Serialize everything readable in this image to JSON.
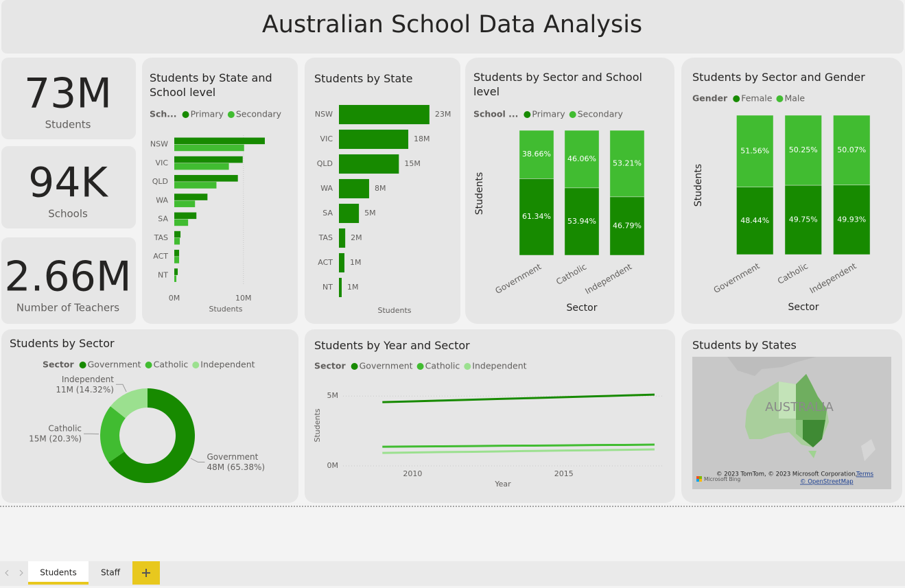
{
  "header": {
    "title": "Australian School Data Analysis"
  },
  "cards": [
    {
      "value": "73M",
      "label": "Students"
    },
    {
      "value": "94K",
      "label": "Schools"
    },
    {
      "value": "2.66M",
      "label": "Number of Teachers"
    }
  ],
  "chart_data": [
    {
      "type": "hbar",
      "title": "Students by State and School level",
      "legend_title": "Sch...",
      "categories": [
        "NSW",
        "VIC",
        "QLD",
        "WA",
        "SA",
        "TAS",
        "ACT",
        "NT"
      ],
      "series": [
        {
          "name": "Primary",
          "color": "#178a00",
          "values": [
            13.1,
            9.9,
            9.2,
            4.8,
            3.2,
            0.9,
            0.7,
            0.5
          ]
        },
        {
          "name": "Secondary",
          "color": "#41bc31",
          "values": [
            10.1,
            7.9,
            6.1,
            3.0,
            2.0,
            0.8,
            0.7,
            0.3
          ]
        }
      ],
      "xlim": [
        0,
        13.5
      ],
      "xticks": [
        {
          "value": 0,
          "label": "0M"
        },
        {
          "value": 10,
          "label": "10M"
        }
      ],
      "xlabel": "Students",
      "grid": true
    },
    {
      "type": "hbar",
      "title": "Students by State",
      "categories": [
        "NSW",
        "VIC",
        "QLD",
        "WA",
        "SA",
        "TAS",
        "ACT",
        "NT"
      ],
      "values": [
        23.1,
        17.7,
        15.3,
        7.7,
        5.1,
        1.6,
        1.4,
        0.7
      ],
      "value_labels": [
        "23M",
        "18M",
        "15M",
        "8M",
        "5M",
        "2M",
        "1M",
        "1M"
      ],
      "color": "#178a00",
      "xlim": [
        0,
        24
      ],
      "xlabel": "Students"
    },
    {
      "type": "stacked_column",
      "title": "Students by Sector and School level",
      "legend_title": "School ...",
      "categories": [
        "Government",
        "Catholic",
        "Independent"
      ],
      "series": [
        {
          "name": "Primary",
          "color": "#178a00",
          "values": [
            61.34,
            53.94,
            46.79
          ],
          "value_labels": [
            "61.34%",
            "53.94%",
            "46.79%"
          ]
        },
        {
          "name": "Secondary",
          "color": "#41bc31",
          "values": [
            38.66,
            46.06,
            53.21
          ],
          "value_labels": [
            "38.66%",
            "46.06%",
            "53.21%"
          ]
        }
      ],
      "ylim": [
        0,
        100
      ],
      "xlabel": "Sector",
      "ylabel": "Students"
    },
    {
      "type": "stacked_column",
      "title": "Students by Sector and Gender",
      "legend_title": "Gender",
      "categories": [
        "Government",
        "Catholic",
        "Independent"
      ],
      "series": [
        {
          "name": "Female",
          "color": "#178a00",
          "values": [
            48.44,
            49.75,
            49.93
          ],
          "value_labels": [
            "48.44%",
            "49.75%",
            "49.93%"
          ]
        },
        {
          "name": "Male",
          "color": "#41bc31",
          "values": [
            51.56,
            50.25,
            50.07
          ],
          "value_labels": [
            "51.56%",
            "50.25%",
            "50.07%"
          ]
        }
      ],
      "ylim": [
        0,
        100
      ],
      "xlabel": "Sector",
      "ylabel": "Students"
    },
    {
      "type": "donut",
      "title": "Students by Sector",
      "legend_title": "Sector",
      "categories": [
        "Government",
        "Catholic",
        "Independent"
      ],
      "values": [
        65.38,
        20.3,
        14.32
      ],
      "value_labels": [
        "48M (65.38%)",
        "15M (20.3%)",
        "11M (14.32%)"
      ],
      "colors": [
        "#178a00",
        "#41bc31",
        "#9be08f"
      ]
    },
    {
      "type": "line",
      "title": "Students by Year and Sector",
      "legend_title": "Sector",
      "x": [
        2009,
        2010,
        2011,
        2012,
        2013,
        2014,
        2015,
        2016,
        2017,
        2018
      ],
      "series": [
        {
          "name": "Government",
          "color": "#178a00",
          "values": [
            4.56,
            4.62,
            4.68,
            4.74,
            4.8,
            4.86,
            4.92,
            4.98,
            5.04,
            5.1
          ]
        },
        {
          "name": "Catholic",
          "color": "#41bc31",
          "values": [
            1.37,
            1.39,
            1.4,
            1.42,
            1.44,
            1.45,
            1.47,
            1.49,
            1.5,
            1.52
          ]
        },
        {
          "name": "Independent",
          "color": "#9be08f",
          "values": [
            0.93,
            0.96,
            0.99,
            1.01,
            1.04,
            1.07,
            1.1,
            1.12,
            1.15,
            1.18
          ]
        }
      ],
      "xlim": [
        2007.7,
        2018.25
      ],
      "xticks": [
        2010,
        2015
      ],
      "ylim": [
        0,
        5.6
      ],
      "yticks": [
        {
          "value": 0,
          "label": "0M"
        },
        {
          "value": 5,
          "label": "5M"
        }
      ],
      "xlabel": "Year",
      "ylabel": "Students",
      "grid": true
    }
  ],
  "map": {
    "title": "Students by States",
    "label": "AUSTRALIA",
    "attribution": "© 2023 TomTom, © 2023 Microsoft Corporation,",
    "terms": "Terms",
    "osm": "© OpenStreetMap",
    "logo": "Microsoft Bing"
  },
  "tabs": [
    "Students",
    "Staff"
  ]
}
